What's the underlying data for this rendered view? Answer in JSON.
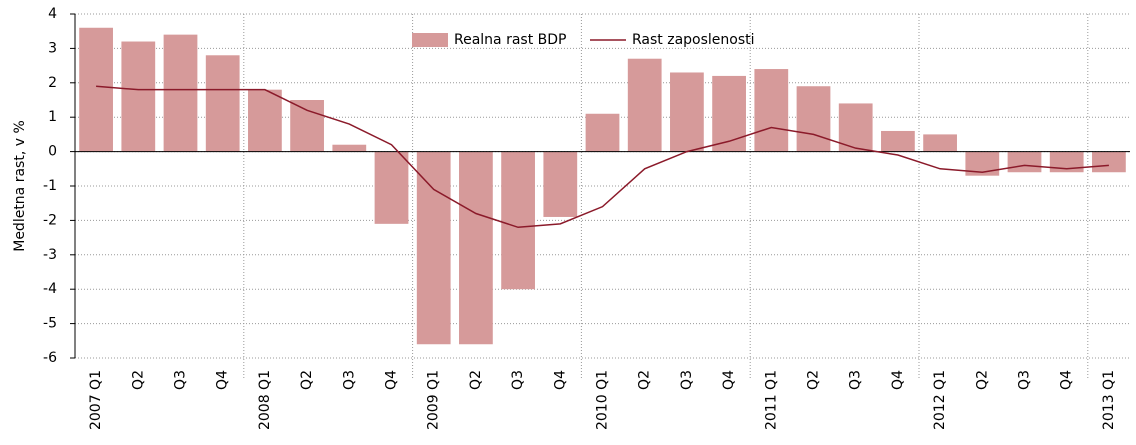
{
  "chart_data": {
    "type": "bar+line",
    "y_label": "Medletna rast,  v %",
    "categories": [
      "2007 Q1",
      "Q2",
      "Q3",
      "Q4",
      "2008 Q1",
      "Q2",
      "Q3",
      "Q4",
      "2009 Q1",
      "Q2",
      "Q3",
      "Q4",
      "2010 Q1",
      "Q2",
      "Q3",
      "Q4",
      "2011 Q1",
      "Q2",
      "Q3",
      "Q4",
      "2012 Q1",
      "Q2",
      "Q3",
      "Q4",
      "2013 Q1"
    ],
    "series": [
      {
        "name": "Realna rast BDP",
        "type": "bar",
        "color": "#d69a9a",
        "values": [
          3.6,
          3.2,
          3.4,
          2.8,
          1.8,
          1.5,
          0.2,
          -2.1,
          -5.6,
          -5.6,
          -4.0,
          -1.9,
          1.1,
          2.7,
          2.3,
          2.2,
          2.4,
          1.9,
          1.4,
          0.6,
          0.5,
          -0.7,
          -0.6,
          -0.6,
          -0.6
        ]
      },
      {
        "name": "Rast zaposlenosti",
        "type": "line",
        "color": "#8b1a2a",
        "values": [
          1.9,
          1.8,
          1.8,
          1.8,
          1.8,
          1.2,
          0.8,
          0.2,
          -1.1,
          -1.8,
          -2.2,
          -2.1,
          -1.6,
          -0.5,
          0.0,
          0.3,
          0.7,
          0.5,
          0.1,
          -0.1,
          -0.5,
          -0.6,
          -0.4,
          -0.5,
          -0.4
        ]
      }
    ],
    "ylim": [
      -6,
      4
    ],
    "yticks": [
      -6,
      -5,
      -4,
      -3,
      -2,
      -1,
      0,
      1,
      2,
      3,
      4
    ],
    "grid": true,
    "legend": "top"
  }
}
